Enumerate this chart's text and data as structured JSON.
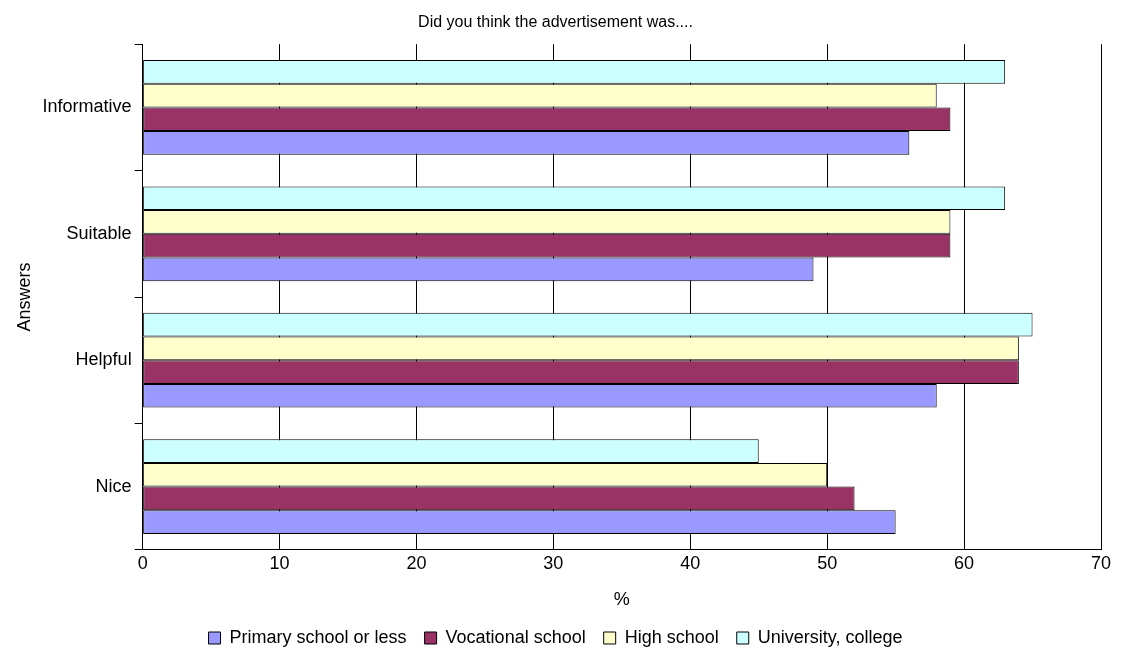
{
  "chart_data": {
    "type": "bar",
    "orientation": "horizontal",
    "title": "Did you think the advertisement was....",
    "xlabel": "%",
    "ylabel": "Answers",
    "categories": [
      "Informative",
      "Suitable",
      "Helpful",
      "Nice"
    ],
    "series": [
      {
        "name": "Primary school or less",
        "color": "#9999ff",
        "values": [
          56,
          49,
          58,
          55
        ]
      },
      {
        "name": "Vocational school",
        "color": "#993366",
        "values": [
          59,
          59,
          64,
          52
        ]
      },
      {
        "name": "High school",
        "color": "#ffffcc",
        "values": [
          58,
          59,
          64,
          50
        ]
      },
      {
        "name": "University, college",
        "color": "#ccffff",
        "values": [
          63,
          63,
          65,
          45
        ]
      }
    ],
    "xlim": [
      0,
      70
    ],
    "xticks": [
      0,
      10,
      20,
      30,
      40,
      50,
      60,
      70
    ],
    "grid": "x",
    "legend": "bottom"
  }
}
